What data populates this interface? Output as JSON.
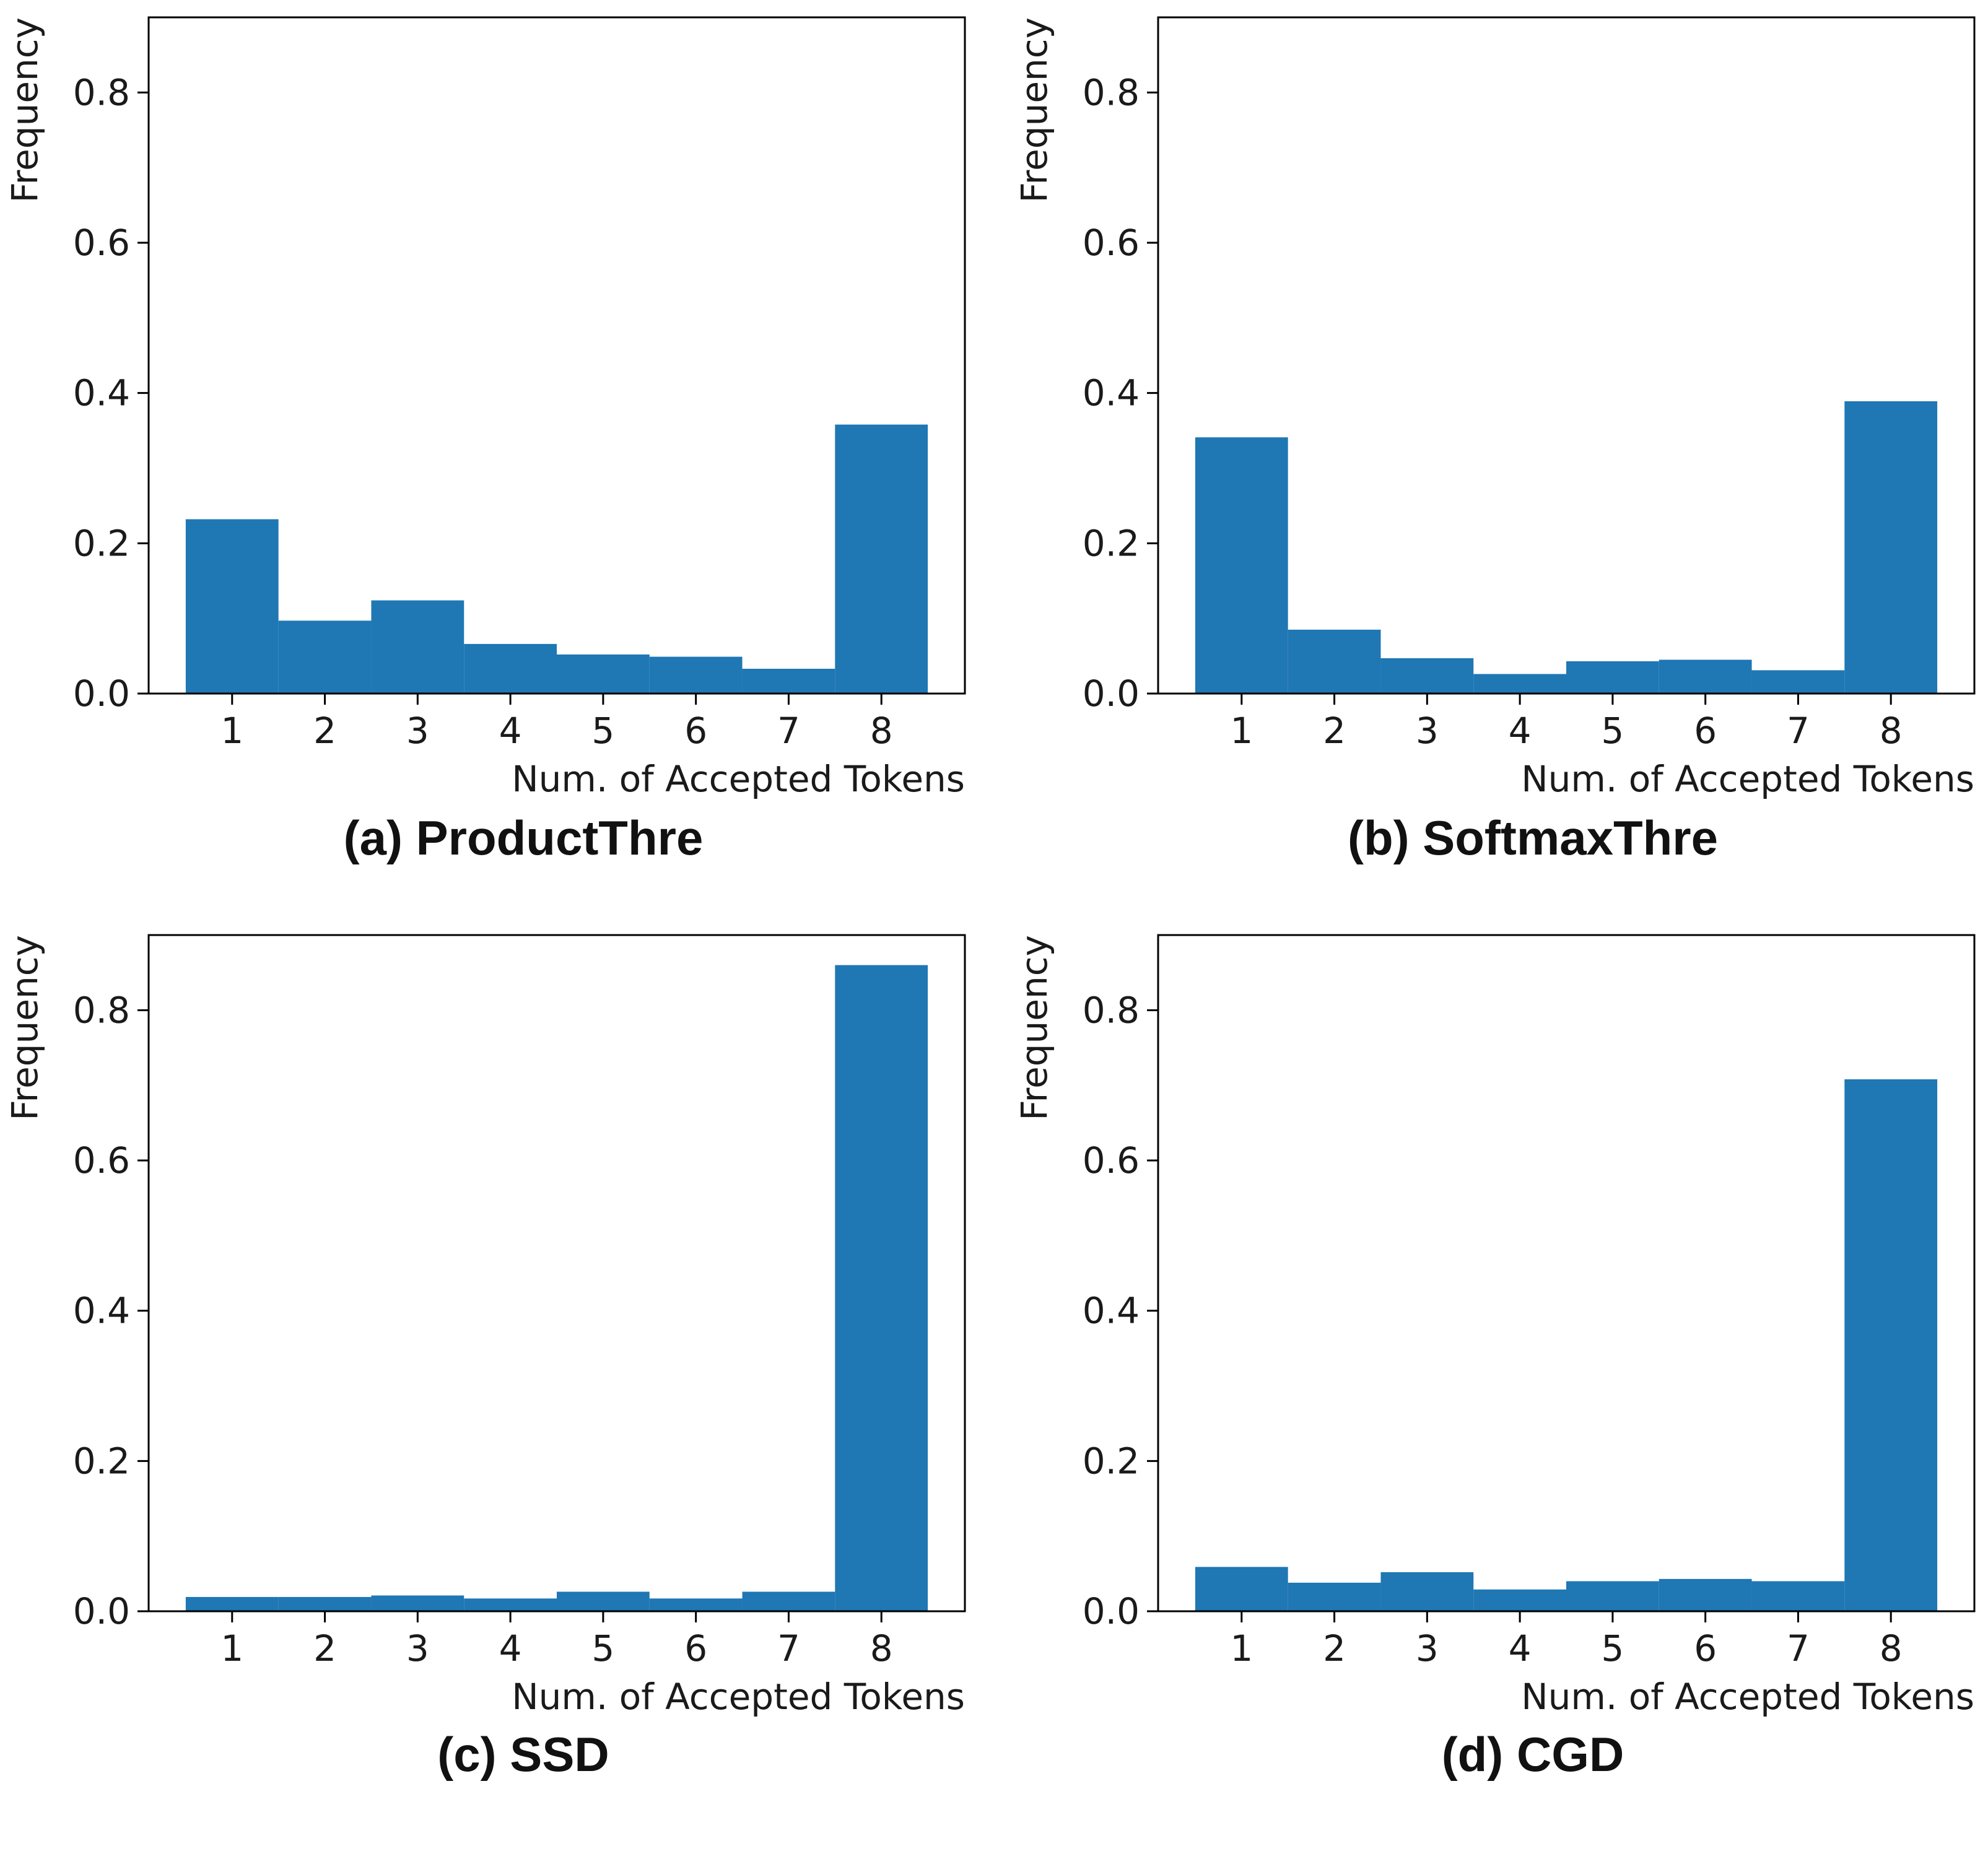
{
  "figure": {
    "panels_layout": "2x2"
  },
  "chart_data": [
    {
      "type": "bar",
      "caption": "(a) ProductThre",
      "categories": [
        "1",
        "2",
        "3",
        "4",
        "5",
        "6",
        "7",
        "8"
      ],
      "values": [
        0.232,
        0.097,
        0.124,
        0.066,
        0.052,
        0.049,
        0.033,
        0.358
      ],
      "xlabel": "Num. of Accepted Tokens",
      "ylabel": "Frequency",
      "ylim": [
        0,
        0.9
      ],
      "yticks": [
        "0.0",
        "0.2",
        "0.4",
        "0.6",
        "0.8"
      ],
      "color": "#1f77b4",
      "grid": false
    },
    {
      "type": "bar",
      "caption": "(b) SoftmaxThre",
      "categories": [
        "1",
        "2",
        "3",
        "4",
        "5",
        "6",
        "7",
        "8"
      ],
      "values": [
        0.341,
        0.085,
        0.047,
        0.026,
        0.043,
        0.045,
        0.031,
        0.389
      ],
      "xlabel": "Num. of Accepted Tokens",
      "ylabel": "Frequency",
      "ylim": [
        0,
        0.9
      ],
      "yticks": [
        "0.0",
        "0.2",
        "0.4",
        "0.6",
        "0.8"
      ],
      "color": "#1f77b4",
      "grid": false
    },
    {
      "type": "bar",
      "caption": "(c) SSD",
      "categories": [
        "1",
        "2",
        "3",
        "4",
        "5",
        "6",
        "7",
        "8"
      ],
      "values": [
        0.019,
        0.019,
        0.021,
        0.017,
        0.026,
        0.017,
        0.026,
        0.86
      ],
      "xlabel": "Num. of Accepted Tokens",
      "ylabel": "Frequency",
      "ylim": [
        0,
        0.9
      ],
      "yticks": [
        "0.0",
        "0.2",
        "0.4",
        "0.6",
        "0.8"
      ],
      "color": "#1f77b4",
      "grid": false
    },
    {
      "type": "bar",
      "caption": "(d) CGD",
      "categories": [
        "1",
        "2",
        "3",
        "4",
        "5",
        "6",
        "7",
        "8"
      ],
      "values": [
        0.059,
        0.038,
        0.052,
        0.029,
        0.04,
        0.043,
        0.04,
        0.708
      ],
      "xlabel": "Num. of Accepted Tokens",
      "ylabel": "Frequency",
      "ylim": [
        0,
        0.9
      ],
      "yticks": [
        "0.0",
        "0.2",
        "0.4",
        "0.6",
        "0.8"
      ],
      "color": "#1f77b4",
      "grid": false
    }
  ]
}
